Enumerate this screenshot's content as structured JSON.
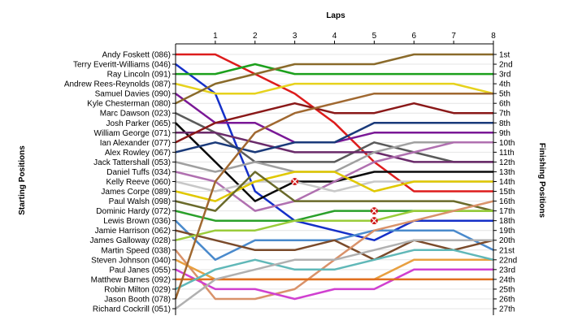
{
  "chart_data": {
    "type": "line",
    "subtype": "bump",
    "title": "",
    "xlabel": "Laps",
    "ylabel_left": "Starting Positions",
    "ylabel_right": "Finishing Positions",
    "x": [
      0,
      1,
      2,
      3,
      4,
      5,
      6,
      7,
      8
    ],
    "x_tick_labels": [
      "1",
      "2",
      "3",
      "4",
      "5",
      "6",
      "7",
      "8"
    ],
    "y_reversed": true,
    "ylim": [
      1,
      27
    ],
    "grid": "horizontal",
    "drivers": [
      "Andy Foskett (086)",
      "Terry Everitt-Williams (046)",
      "Ray Lincoln (091)",
      "Andrew Rees-Reynolds (087)",
      "Samuel Davies (090)",
      "Kyle Chesterman (080)",
      "Marc Dawson (023)",
      "Josh Parker (065)",
      "William George (071)",
      "Ian Alexander (077)",
      "Alex Rowley (067)",
      "Jack Tattershall (053)",
      "Daniel Tuffs (034)",
      "Kelly Reeve (060)",
      "James Corpe (089)",
      "Paul Walsh (098)",
      "Dominic Hardy (072)",
      "Lewis Brown (036)",
      "Jamie Harrison (062)",
      "James Galloway (028)",
      "Martin Speed (038)",
      "Steven Johnson (040)",
      "Paul Janes (055)",
      "Matthew Barnes (092)",
      "Robin Milton (029)",
      "Jason Booth (078)",
      "Richard Cockrill (051)"
    ],
    "finish_labels": [
      "1st",
      "2nd",
      "3rd",
      "4th",
      "5th",
      "6th",
      "7th",
      "8th",
      "9th",
      "10th",
      "11th",
      "12th",
      "13th",
      "14th",
      "15th",
      "16th",
      "17th",
      "18th",
      "19th",
      "20th",
      "21st",
      "22nd",
      "23rd",
      "24th",
      "25th",
      "26th",
      "27th"
    ],
    "series": [
      {
        "color": "#dd1c1c",
        "values": [
          1,
          1,
          3,
          5,
          8,
          12,
          15,
          15,
          15
        ]
      },
      {
        "color": "#1530c8",
        "values": [
          2,
          5,
          15,
          18,
          19,
          20,
          18,
          18,
          18
        ]
      },
      {
        "color": "#1ca01c",
        "values": [
          3,
          3,
          2,
          3,
          3,
          3,
          3,
          3,
          3
        ]
      },
      {
        "color": "#e6d21c",
        "values": [
          4,
          5,
          5,
          4,
          4,
          4,
          4,
          4,
          5
        ]
      },
      {
        "color": "#7a1896",
        "values": [
          5,
          8,
          8,
          10,
          10,
          9,
          9,
          9,
          9
        ]
      },
      {
        "color": "#8a6a2a",
        "values": [
          6,
          4,
          3,
          2,
          2,
          2,
          1,
          1,
          1
        ]
      },
      {
        "color": "#5a5a5a",
        "values": [
          7,
          9,
          12,
          12,
          12,
          10,
          11,
          12,
          12
        ]
      },
      {
        "color": "#0a0a0a",
        "values": [
          8,
          12,
          16,
          14,
          14,
          13,
          13,
          13,
          13
        ]
      },
      {
        "color": "#6a2a6a",
        "values": [
          9,
          9,
          10,
          11,
          11,
          11,
          12,
          12,
          12
        ]
      },
      {
        "color": "#8a1818",
        "values": [
          10,
          8,
          7,
          6,
          7,
          7,
          6,
          7,
          7
        ]
      },
      {
        "color": "#1a3a7a",
        "values": [
          11,
          10,
          11,
          10,
          10,
          8,
          8,
          8,
          8
        ]
      },
      {
        "color": "#a0a0a0",
        "values": [
          12,
          13,
          12,
          13,
          13,
          11,
          10,
          10,
          10
        ]
      },
      {
        "color": "#b070b0",
        "values": [
          13,
          14,
          17,
          16,
          14,
          12,
          11,
          10,
          10
        ]
      },
      {
        "color": "#c8c8c8",
        "values": [
          14,
          15,
          14,
          14,
          15,
          14,
          14,
          14,
          14
        ]
      },
      {
        "color": "#e0c800",
        "values": [
          15,
          16,
          14,
          13,
          13,
          15,
          14,
          14,
          14
        ]
      },
      {
        "color": "#6a6a2a",
        "values": [
          16,
          17,
          13,
          16,
          16,
          16,
          16,
          16,
          17
        ]
      },
      {
        "color": "#2aa02a",
        "values": [
          17,
          18,
          18,
          18,
          17,
          17,
          17,
          17,
          17
        ]
      },
      {
        "color": "#4a8acc",
        "values": [
          18,
          22,
          20,
          20,
          20,
          19,
          19,
          19,
          21
        ]
      },
      {
        "color": "#7a4a2a",
        "values": [
          19,
          20,
          21,
          21,
          20,
          22,
          20,
          21,
          20
        ]
      },
      {
        "color": "#9acc3a",
        "values": [
          20,
          19,
          19,
          18,
          18,
          18,
          17,
          17,
          17
        ]
      },
      {
        "color": "#d9926a",
        "values": [
          21,
          26,
          26,
          25,
          22,
          19,
          18,
          17,
          16
        ]
      },
      {
        "color": "#e8a040",
        "values": [
          22,
          24,
          24,
          24,
          24,
          24,
          22,
          22,
          22
        ]
      },
      {
        "color": "#d040d0",
        "values": [
          23,
          25,
          25,
          26,
          25,
          25,
          23,
          23,
          23
        ]
      },
      {
        "color": "#e07020",
        "values": [
          24,
          24,
          24,
          24,
          24,
          24,
          24,
          24,
          24
        ]
      },
      {
        "color": "#60b8b8",
        "values": [
          25,
          23,
          22,
          23,
          23,
          22,
          21,
          21,
          22
        ]
      },
      {
        "color": "#a06830",
        "values": [
          26,
          14,
          9,
          7,
          6,
          5,
          5,
          5,
          5
        ]
      },
      {
        "color": "#b0b0b0",
        "values": [
          27,
          24,
          23,
          22,
          22,
          21,
          20,
          20,
          20
        ]
      }
    ],
    "retirements": [
      {
        "lap": 3,
        "position": 14
      },
      {
        "lap": 5,
        "position": 17
      },
      {
        "lap": 5,
        "position": 18
      }
    ]
  }
}
